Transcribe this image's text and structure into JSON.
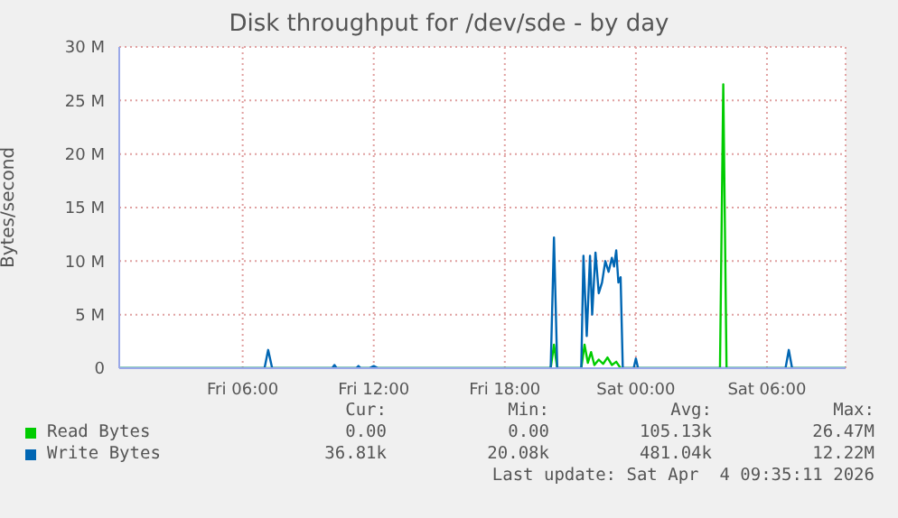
{
  "chart_data": {
    "type": "line",
    "title": "Disk throughput for /dev/sde - by day",
    "ylabel": "Bytes/second",
    "xlim": [
      "2026-04-03T00:21",
      "2026-04-04T09:36"
    ],
    "xticks": [
      {
        "value": "2026-04-03T06:00",
        "label": "Fri 06:00"
      },
      {
        "value": "2026-04-03T12:00",
        "label": "Fri 12:00"
      },
      {
        "value": "2026-04-03T18:00",
        "label": "Fri 18:00"
      },
      {
        "value": "2026-04-04T00:00",
        "label": "Sat 00:00"
      },
      {
        "value": "2026-04-04T06:00",
        "label": "Sat 06:00"
      }
    ],
    "ylim": [
      0,
      30
    ],
    "yticks": [
      0,
      {
        "value": 5,
        "label": "5 M"
      },
      {
        "value": 10,
        "label": "10 M"
      },
      {
        "value": 15,
        "label": "15 M"
      },
      {
        "value": 20,
        "label": "20 M"
      },
      {
        "value": 25,
        "label": "25 M"
      },
      {
        "value": 30,
        "label": "30 M"
      }
    ],
    "grid": true,
    "legend": "bottom",
    "marker": "none",
    "line_style": "solid",
    "series": [
      {
        "name": "Read Bytes",
        "color": "#00cc00",
        "x": [
          "2026-04-03T00:21",
          "2026-04-03T20:06",
          "2026-04-03T20:15",
          "2026-04-03T20:24",
          "2026-04-03T21:30",
          "2026-04-03T21:39",
          "2026-04-03T21:48",
          "2026-04-03T21:57",
          "2026-04-03T22:06",
          "2026-04-03T22:18",
          "2026-04-03T22:30",
          "2026-04-03T22:42",
          "2026-04-03T22:54",
          "2026-04-03T23:06",
          "2026-04-03T23:18",
          "2026-04-04T03:51",
          "2026-04-04T04:00",
          "2026-04-04T04:09",
          "2026-04-04T09:36"
        ],
        "values": [
          0,
          0,
          2.2,
          0,
          0,
          2.2,
          0.5,
          1.5,
          0.3,
          0.8,
          0.4,
          1.0,
          0.3,
          0.6,
          0,
          0,
          26.5,
          0,
          0
        ]
      },
      {
        "name": "Write Bytes",
        "color": "#0066b3",
        "x": [
          "2026-04-03T00:21",
          "2026-04-03T07:00",
          "2026-04-03T07:10",
          "2026-04-03T07:21",
          "2026-04-03T10:06",
          "2026-04-03T10:12",
          "2026-04-03T10:18",
          "2026-04-03T11:12",
          "2026-04-03T11:18",
          "2026-04-03T11:24",
          "2026-04-03T11:48",
          "2026-04-03T12:00",
          "2026-04-03T12:12",
          "2026-04-03T20:06",
          "2026-04-03T20:15",
          "2026-04-03T20:24",
          "2026-04-03T21:30",
          "2026-04-03T21:36",
          "2026-04-03T21:45",
          "2026-04-03T21:54",
          "2026-04-03T22:00",
          "2026-04-03T22:09",
          "2026-04-03T22:18",
          "2026-04-03T22:27",
          "2026-04-03T22:36",
          "2026-04-03T22:45",
          "2026-04-03T22:54",
          "2026-04-03T23:00",
          "2026-04-03T23:06",
          "2026-04-03T23:12",
          "2026-04-03T23:18",
          "2026-04-03T23:24",
          "2026-04-03T23:54",
          "2026-04-04T00:00",
          "2026-04-04T00:06",
          "2026-04-04T06:51",
          "2026-04-04T07:00",
          "2026-04-04T07:09",
          "2026-04-04T09:36"
        ],
        "values": [
          0,
          0,
          1.7,
          0,
          0,
          0.3,
          0,
          0,
          0.2,
          0,
          0,
          0.2,
          0,
          0,
          12.2,
          0,
          0,
          10.5,
          3,
          10.5,
          5,
          10.8,
          7,
          8,
          10,
          9,
          10.3,
          9.5,
          11,
          8,
          8.5,
          0,
          0,
          0.9,
          0,
          0,
          1.7,
          0,
          0
        ]
      }
    ],
    "annotations": [
      "Cur:",
      "Min:",
      "Avg:",
      "Max:",
      "0.00",
      "0.00",
      "105.13k",
      "26.47M",
      "36.81k",
      "20.08k",
      "481.04k",
      "12.22M",
      "Last update: Sat Apr  4 09:35:11 2026"
    ]
  }
}
